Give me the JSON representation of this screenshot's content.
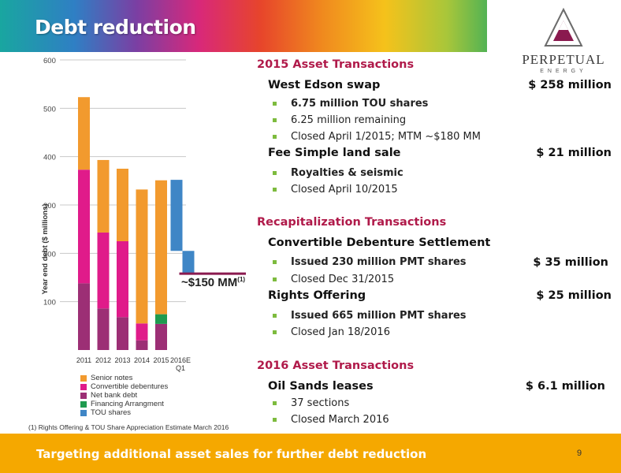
{
  "slide": {
    "title": "Debt reduction",
    "page_number": "9",
    "footer": "Targeting additional asset sales for further debt reduction",
    "logo_main": "PERPETUAL",
    "logo_sub": "ENERGY"
  },
  "chart_data": {
    "type": "bar",
    "ylabel": "Year end debt ($ millions)",
    "ylim": [
      0,
      600
    ],
    "yticks": [
      "100",
      "200",
      "300",
      "400",
      "500",
      "600"
    ],
    "categories": [
      "2011",
      "2012",
      "2013",
      "2014",
      "2015",
      "2016E Q1"
    ],
    "category_labels": [
      "2011",
      "2012",
      "2013",
      "2014",
      "2015",
      "2016E"
    ],
    "category_sublabels": [
      "",
      "",
      "",
      "",
      "",
      "Q1"
    ],
    "series": [
      {
        "name": "Net bank debt",
        "color": "#9c2f75",
        "values": [
          138,
          86,
          68,
          20,
          54,
          0
        ]
      },
      {
        "name": "Financing Arrangment",
        "color": "#1f9a4f",
        "values": [
          0,
          0,
          0,
          0,
          20,
          0
        ]
      },
      {
        "name": "Convertible debentures",
        "color": "#e01b8a",
        "values": [
          235,
          157,
          157,
          35,
          0,
          0
        ]
      },
      {
        "name": "Senior notes",
        "color": "#f29a2e",
        "values": [
          150,
          150,
          150,
          277,
          277,
          0
        ]
      },
      {
        "name": "TOU shares",
        "color": "#3f86c6",
        "values": [
          0,
          0,
          0,
          0,
          0,
          352
        ]
      }
    ],
    "waterfall_2016": {
      "top": 352,
      "step1_bottom": 205,
      "step2_bottom": 158
    },
    "target_line": 158,
    "annotation": "~$150 MM",
    "annotation_sup": "(1)",
    "legend_order": [
      "Senior notes",
      "Convertible debentures",
      "Net bank debt",
      "Financing Arrangment",
      "TOU shares"
    ],
    "legend_colors": [
      "#f29a2e",
      "#e01b8a",
      "#9c2f75",
      "#1f9a4f",
      "#3f86c6"
    ]
  },
  "footnote": "(1)   Rights Offering & TOU Share Appreciation Estimate March 2016",
  "sections": {
    "s1_title": "2015 Asset Transactions",
    "s1_r1_label": "West Edson swap",
    "s1_r1_amount": "$ 258 million",
    "s1_r1_b1": "6.75 million TOU shares",
    "s1_r1_b2": "6.25 million remaining",
    "s1_r1_b3": "Closed April 1/2015; MTM ~$180 MM",
    "s1_r2_label": "Fee Simple land sale",
    "s1_r2_amount": "$ 21 million",
    "s1_r2_b1": "Royalties & seismic",
    "s1_r2_b2": "Closed April 10/2015",
    "s2_title": "Recapitalization Transactions",
    "s2_r1_label": "Convertible Debenture Settlement",
    "s2_r1_b1": "Issued 230 million PMT shares",
    "s2_r1_b1_amount": "$ 35 million",
    "s2_r1_b2": "Closed Dec 31/2015",
    "s2_r2_label": "Rights Offering",
    "s2_r2_amount": "$ 25 million",
    "s2_r2_b1": "Issued 665 million PMT shares",
    "s2_r2_b2": "Closed Jan 18/2016",
    "s3_title": "2016 Asset Transactions",
    "s3_r1_label": "Oil Sands leases",
    "s3_r1_amount": "$ 6.1 million",
    "s3_r1_b1": "37 sections",
    "s3_r1_b2": "Closed March 2016"
  }
}
